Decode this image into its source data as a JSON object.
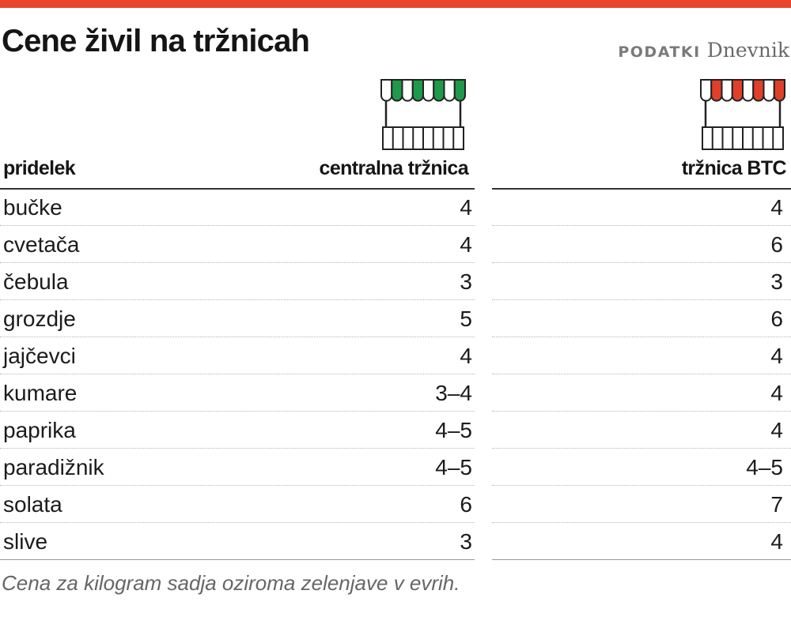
{
  "title": "Cene živil na tržnicah",
  "source": {
    "label": "PODATKI",
    "brand": "Dnevnik"
  },
  "colors": {
    "accent_bar": "#e8452c",
    "central_awning": "#1e9a4a",
    "btc_awning": "#e0402a"
  },
  "icons": {
    "central": "market-stall-green-icon",
    "btc": "market-stall-red-icon"
  },
  "chart_data": {
    "type": "table",
    "columns": [
      "pridelek",
      "centralna tržnica",
      "tržnica BTC"
    ],
    "rows": [
      [
        "bučke",
        "4",
        "4"
      ],
      [
        "cvetača",
        "4",
        "6"
      ],
      [
        "čebula",
        "3",
        "3"
      ],
      [
        "grozdje",
        "5",
        "6"
      ],
      [
        "jajčevci",
        "4",
        "4"
      ],
      [
        "kumare",
        "3–4",
        "4"
      ],
      [
        "paprika",
        "4–5",
        "4"
      ],
      [
        "paradižnik",
        "4–5",
        "4–5"
      ],
      [
        "solata",
        "6",
        "7"
      ],
      [
        "slive",
        "3",
        "4"
      ]
    ]
  },
  "footnote": "Cena za kilogram sadja oziroma zelenjave v evrih."
}
